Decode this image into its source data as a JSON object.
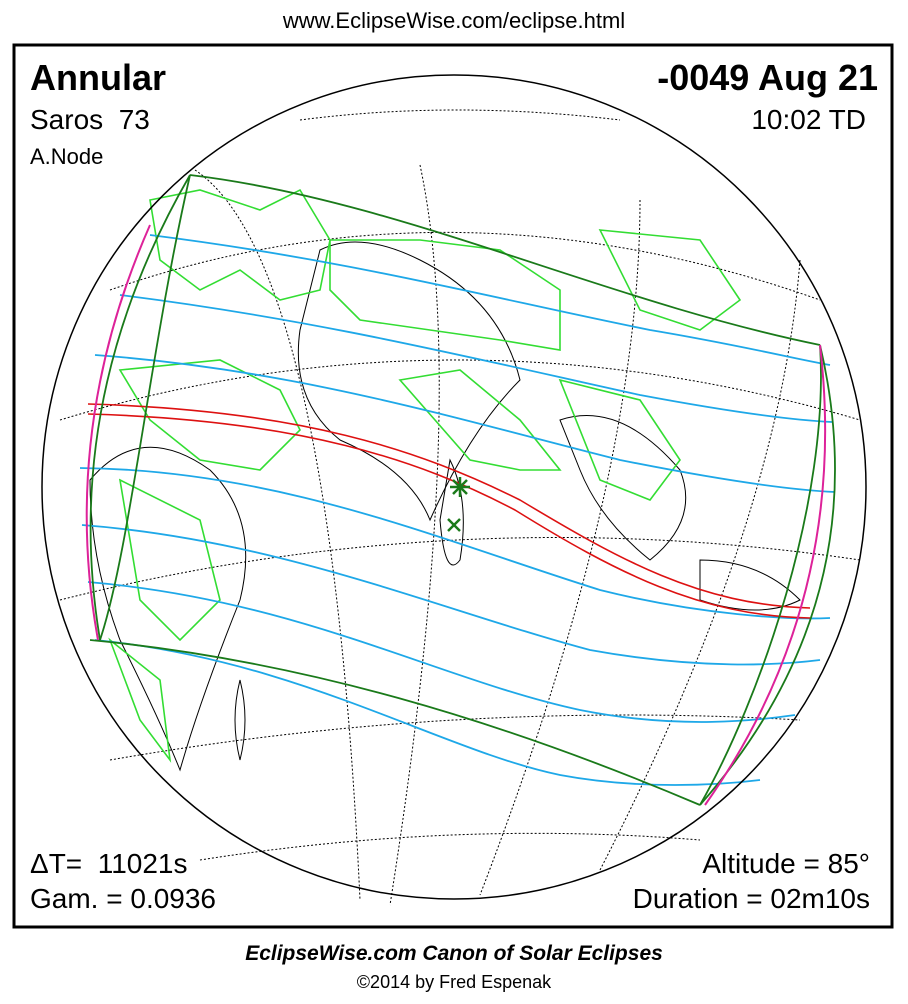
{
  "header": {
    "url": "www.EclipseWise.com/eclipse.html"
  },
  "eclipse": {
    "type": "Annular",
    "date": "-0049 Aug 21",
    "saros": "Saros  73",
    "time": "10:02 TD",
    "node": "A.Node",
    "delta_t": "ΔT=  11021s",
    "gamma": "Gam. = 0.0936",
    "altitude": "Altitude = 85°",
    "duration": "Duration = 02m10s"
  },
  "footer": {
    "title": "EclipseWise.com Canon of Solar Eclipses",
    "copyright": "©2014 by Fred Espenak"
  }
}
